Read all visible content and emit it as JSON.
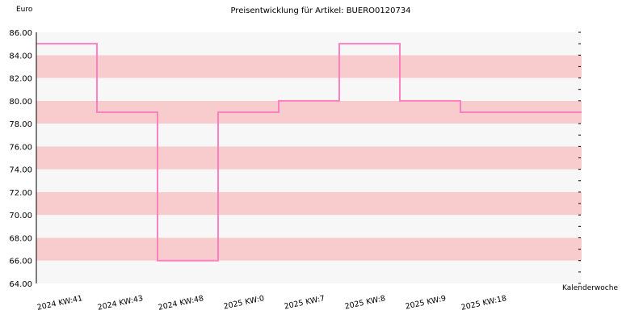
{
  "chart_data": {
    "type": "line",
    "style": "step",
    "title": "Preisentwicklung für Artikel: BUERO0120734",
    "ylabel": "Euro",
    "xlabel": "Kalenderwoche",
    "ylim": [
      64,
      86
    ],
    "ytick_labels": [
      "64.00",
      "66.00",
      "68.00",
      "70.00",
      "72.00",
      "74.00",
      "76.00",
      "78.00",
      "80.00",
      "82.00",
      "84.00",
      "86.00"
    ],
    "categories": [
      "2024 KW:41",
      "2024 KW:43",
      "2024 KW:48",
      "2025 KW:0",
      "2025 KW:7",
      "2025 KW:8",
      "2025 KW:9",
      "2025 KW:18"
    ],
    "series": [
      {
        "values": [
          85,
          79,
          66,
          79,
          80,
          85,
          80,
          79
        ]
      }
    ],
    "line_color": "#ff80c0",
    "band_colors": [
      "#f7f7f7",
      "#f8cccc"
    ],
    "grid": false
  }
}
